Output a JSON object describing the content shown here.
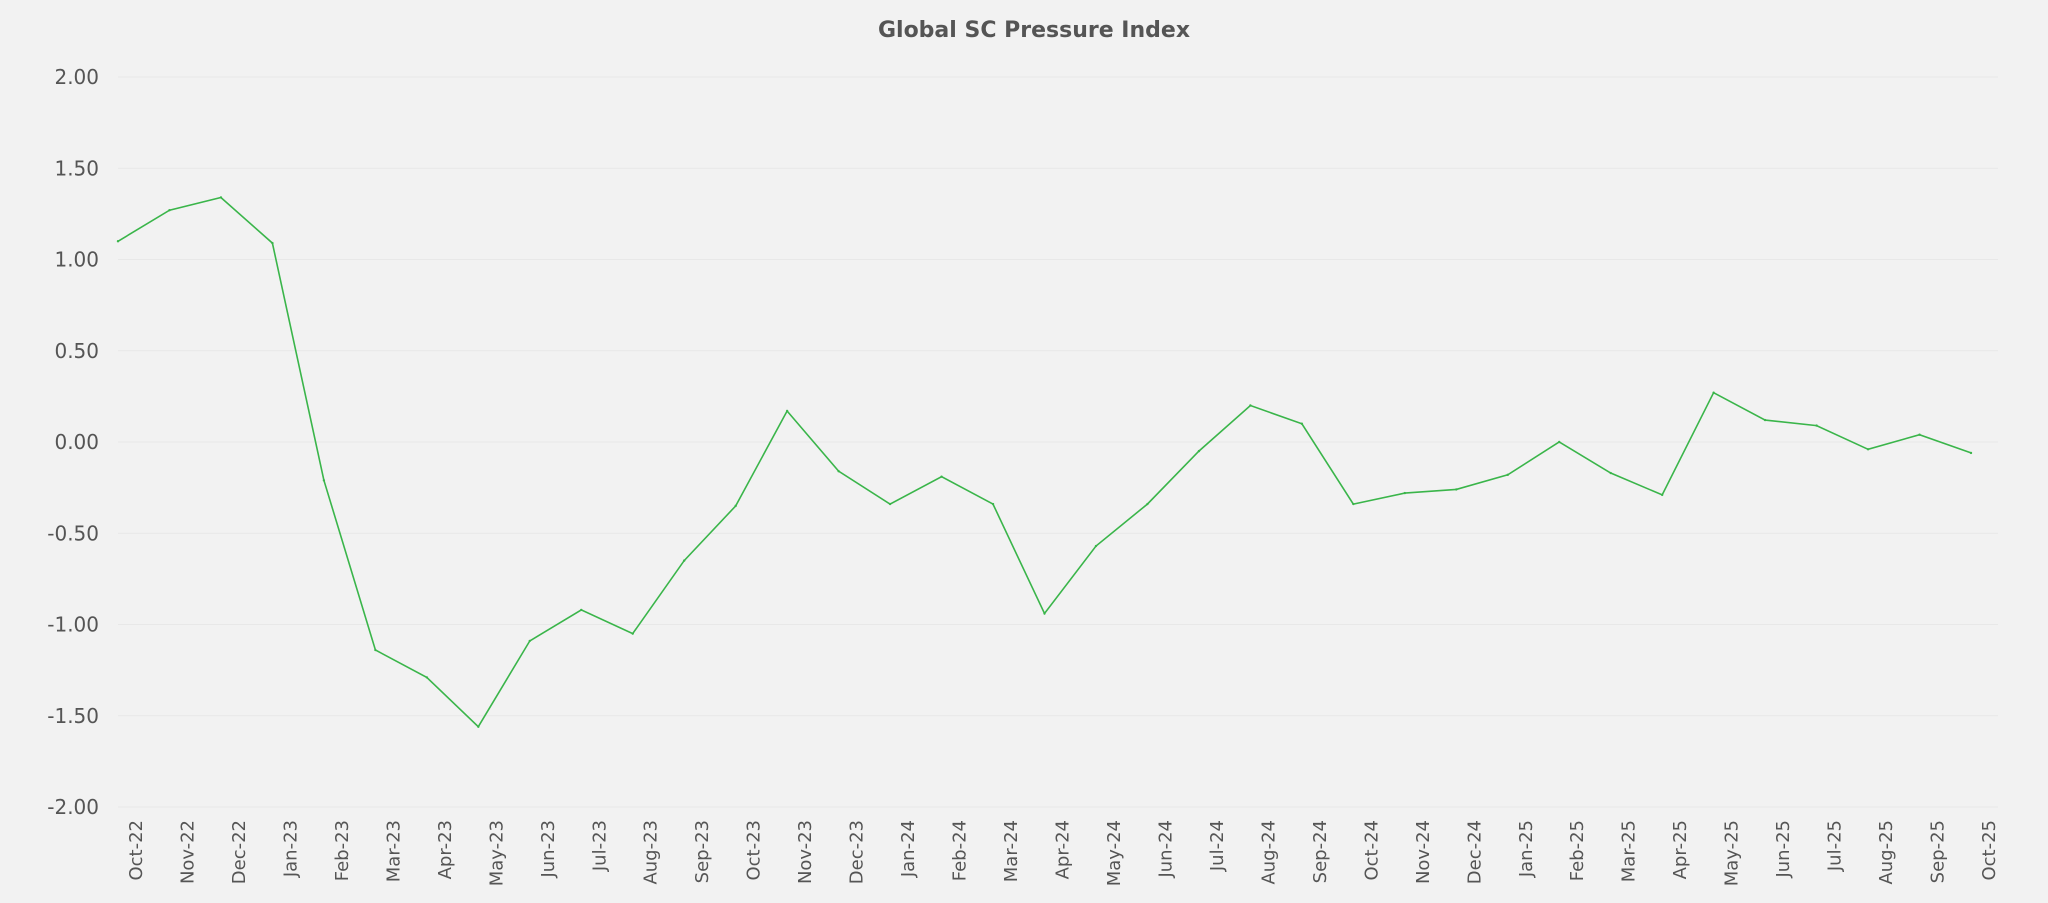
{
  "chart_data": {
    "type": "line",
    "title": "Global SC Pressure Index",
    "xlabel": "",
    "ylabel": "",
    "ylim": [
      -2.0,
      2.0
    ],
    "y_ticks": [
      "2.00",
      "1.50",
      "1.00",
      "0.50",
      "0.00",
      "-0.50",
      "-1.00",
      "-1.50",
      "-2.00"
    ],
    "grid": true,
    "legend": "none",
    "categories": [
      "Oct-22",
      "Nov-22",
      "Dec-22",
      "Jan-23",
      "Feb-23",
      "Mar-23",
      "Apr-23",
      "May-23",
      "Jun-23",
      "Jul-23",
      "Aug-23",
      "Sep-23",
      "Oct-23",
      "Nov-23",
      "Dec-23",
      "Jan-24",
      "Feb-24",
      "Mar-24",
      "Apr-24",
      "May-24",
      "Jun-24",
      "Jul-24",
      "Aug-24",
      "Sep-24",
      "Oct-24",
      "Nov-24",
      "Dec-24",
      "Jan-25",
      "Feb-25",
      "Mar-25",
      "Apr-25",
      "May-25",
      "Jun-25",
      "Jul-25",
      "Aug-25",
      "Sep-25",
      "Oct-25"
    ],
    "series": [
      {
        "color": "#3ab54a",
        "values": [
          1.1,
          1.27,
          1.34,
          1.09,
          -0.21,
          -1.14,
          -1.29,
          -1.56,
          -1.09,
          -0.92,
          -1.05,
          -0.65,
          -0.35,
          0.17,
          -0.16,
          -0.34,
          -0.19,
          -0.34,
          -0.94,
          -0.57,
          -0.34,
          -0.05,
          0.2,
          0.1,
          -0.34,
          -0.28,
          -0.26,
          -0.18,
          0.0,
          -0.17,
          -0.29,
          0.27,
          0.12,
          0.09,
          -0.04,
          0.04,
          -0.06
        ]
      }
    ]
  }
}
